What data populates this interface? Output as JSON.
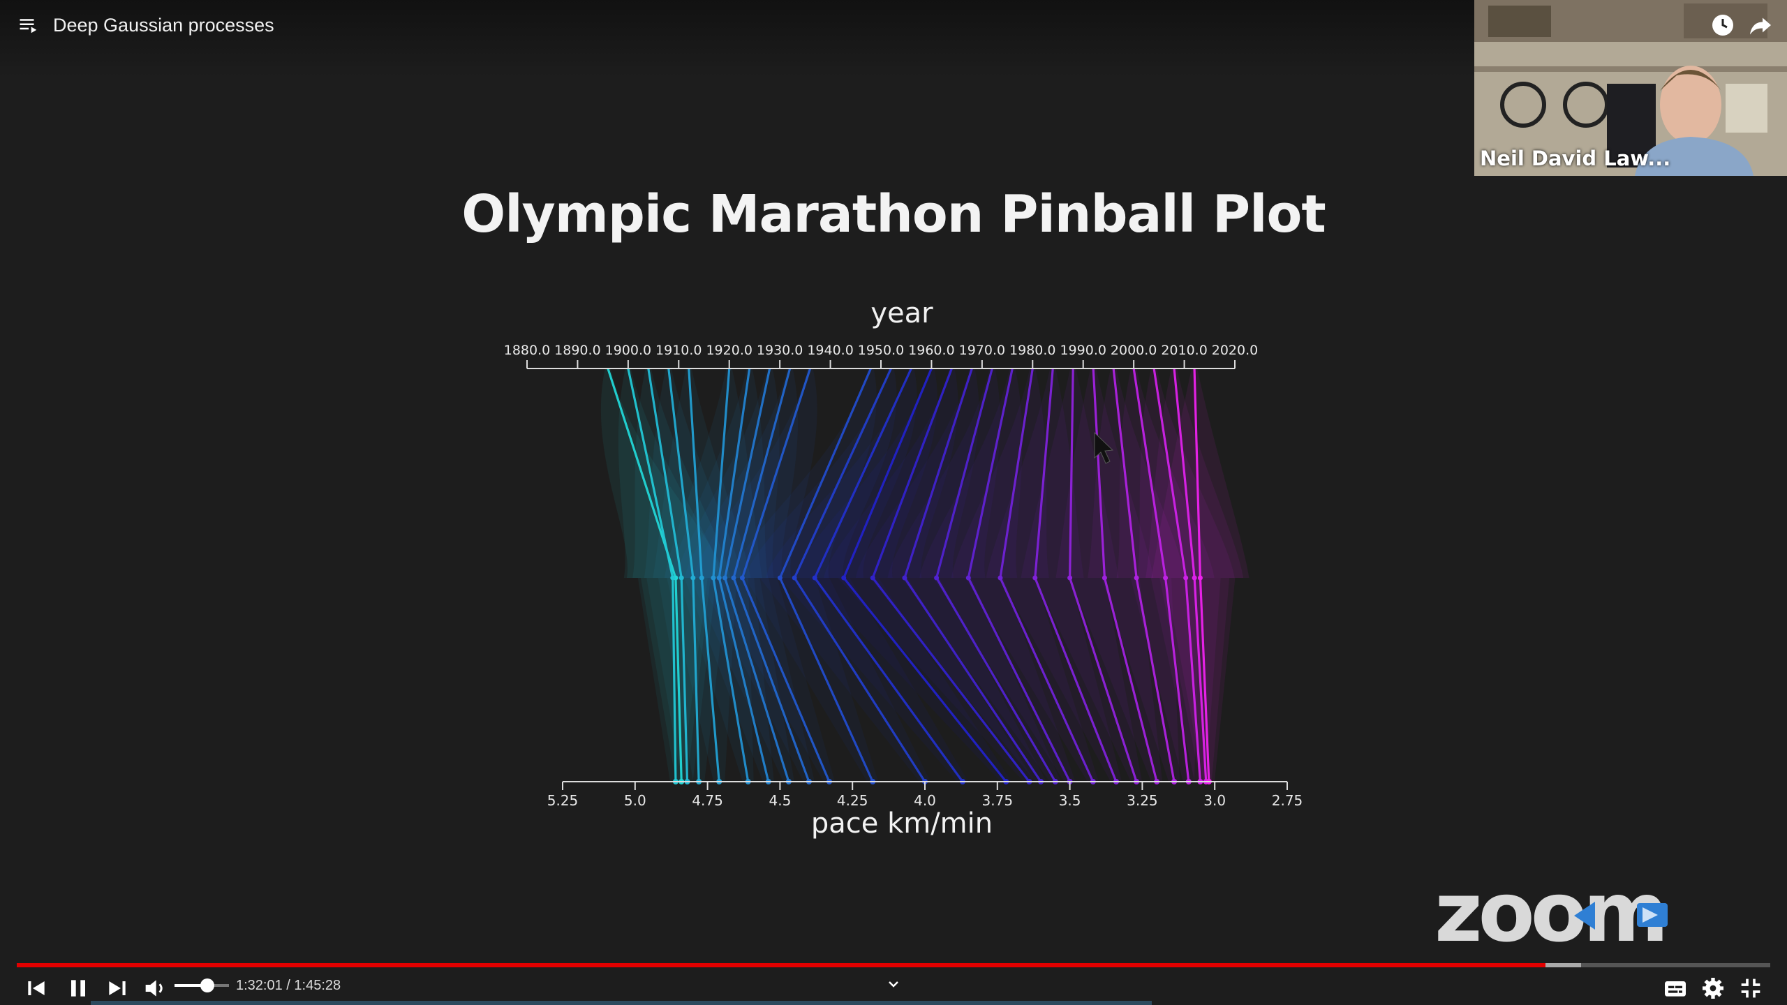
{
  "video": {
    "title": "Deep Gaussian processes",
    "time_current": "1:32:01",
    "time_separator": " / ",
    "time_total": "1:45:28",
    "progress_fraction": 0.872,
    "buffered_fraction": 0.892,
    "volume_fraction": 0.6
  },
  "slide": {
    "title": "Olympic Marathon Pinball Plot"
  },
  "chart_data": {
    "type": "line",
    "top_axis": {
      "label": "year",
      "ticks": [
        "1880.0",
        "1890.0",
        "1900.0",
        "1910.0",
        "1920.0",
        "1930.0",
        "1940.0",
        "1950.0",
        "1960.0",
        "1970.0",
        "1980.0",
        "1990.0",
        "2000.0",
        "2010.0",
        "2020.0"
      ],
      "range": [
        1880,
        2020
      ]
    },
    "bottom_axis": {
      "label": "pace km/min",
      "ticks": [
        "5.25",
        "5.0",
        "4.75",
        "4.5",
        "4.25",
        "4.0",
        "3.75",
        "3.5",
        "3.25",
        "3.0",
        "2.75"
      ],
      "range": [
        5.25,
        2.75
      ]
    },
    "series": [
      {
        "year": 1896,
        "middle_pace": 4.86,
        "pace": 4.84
      },
      {
        "year": 1900,
        "middle_pace": 4.87,
        "pace": 4.86
      },
      {
        "year": 1904,
        "middle_pace": 4.84,
        "pace": 4.82
      },
      {
        "year": 1908,
        "middle_pace": 4.8,
        "pace": 4.78
      },
      {
        "year": 1912,
        "middle_pace": 4.77,
        "pace": 4.71
      },
      {
        "year": 1920,
        "middle_pace": 4.73,
        "pace": 4.61
      },
      {
        "year": 1924,
        "middle_pace": 4.71,
        "pace": 4.54
      },
      {
        "year": 1928,
        "middle_pace": 4.69,
        "pace": 4.47
      },
      {
        "year": 1932,
        "middle_pace": 4.66,
        "pace": 4.4
      },
      {
        "year": 1936,
        "middle_pace": 4.63,
        "pace": 4.33
      },
      {
        "year": 1948,
        "middle_pace": 4.5,
        "pace": 4.18
      },
      {
        "year": 1952,
        "middle_pace": 4.45,
        "pace": 4.0
      },
      {
        "year": 1956,
        "middle_pace": 4.38,
        "pace": 3.87
      },
      {
        "year": 1960,
        "middle_pace": 4.28,
        "pace": 3.72
      },
      {
        "year": 1964,
        "middle_pace": 4.18,
        "pace": 3.64
      },
      {
        "year": 1968,
        "middle_pace": 4.07,
        "pace": 3.6
      },
      {
        "year": 1972,
        "middle_pace": 3.96,
        "pace": 3.55
      },
      {
        "year": 1976,
        "middle_pace": 3.85,
        "pace": 3.5
      },
      {
        "year": 1980,
        "middle_pace": 3.74,
        "pace": 3.42
      },
      {
        "year": 1984,
        "middle_pace": 3.62,
        "pace": 3.34
      },
      {
        "year": 1988,
        "middle_pace": 3.5,
        "pace": 3.27
      },
      {
        "year": 1992,
        "middle_pace": 3.38,
        "pace": 3.2
      },
      {
        "year": 1996,
        "middle_pace": 3.27,
        "pace": 3.14
      },
      {
        "year": 2000,
        "middle_pace": 3.17,
        "pace": 3.09
      },
      {
        "year": 2004,
        "middle_pace": 3.1,
        "pace": 3.05
      },
      {
        "year": 2008,
        "middle_pace": 3.07,
        "pace": 3.03
      },
      {
        "year": 2012,
        "middle_pace": 3.05,
        "pace": 3.02
      }
    ],
    "colormap": [
      "#22d6d6",
      "#2222c8",
      "#ee22ee"
    ],
    "grid": false,
    "legend": "none"
  },
  "webcam": {
    "name": "Neil David Law..."
  },
  "zoom_logo": "zoom",
  "icons": {
    "playlist": "playlist-icon",
    "watch_later": "clock-icon",
    "share": "share-icon",
    "prev": "skip-previous-icon",
    "pause": "pause-icon",
    "next": "skip-next-icon",
    "volume": "volume-icon",
    "subtitles": "subtitles-icon",
    "settings": "gear-icon",
    "exit_fullscreen": "exit-fullscreen-icon",
    "chapter": "chevron-down-icon",
    "cursor": "mouse-cursor-icon"
  },
  "colors": {
    "progress": "#e20000",
    "background": "#1d1d1d"
  }
}
